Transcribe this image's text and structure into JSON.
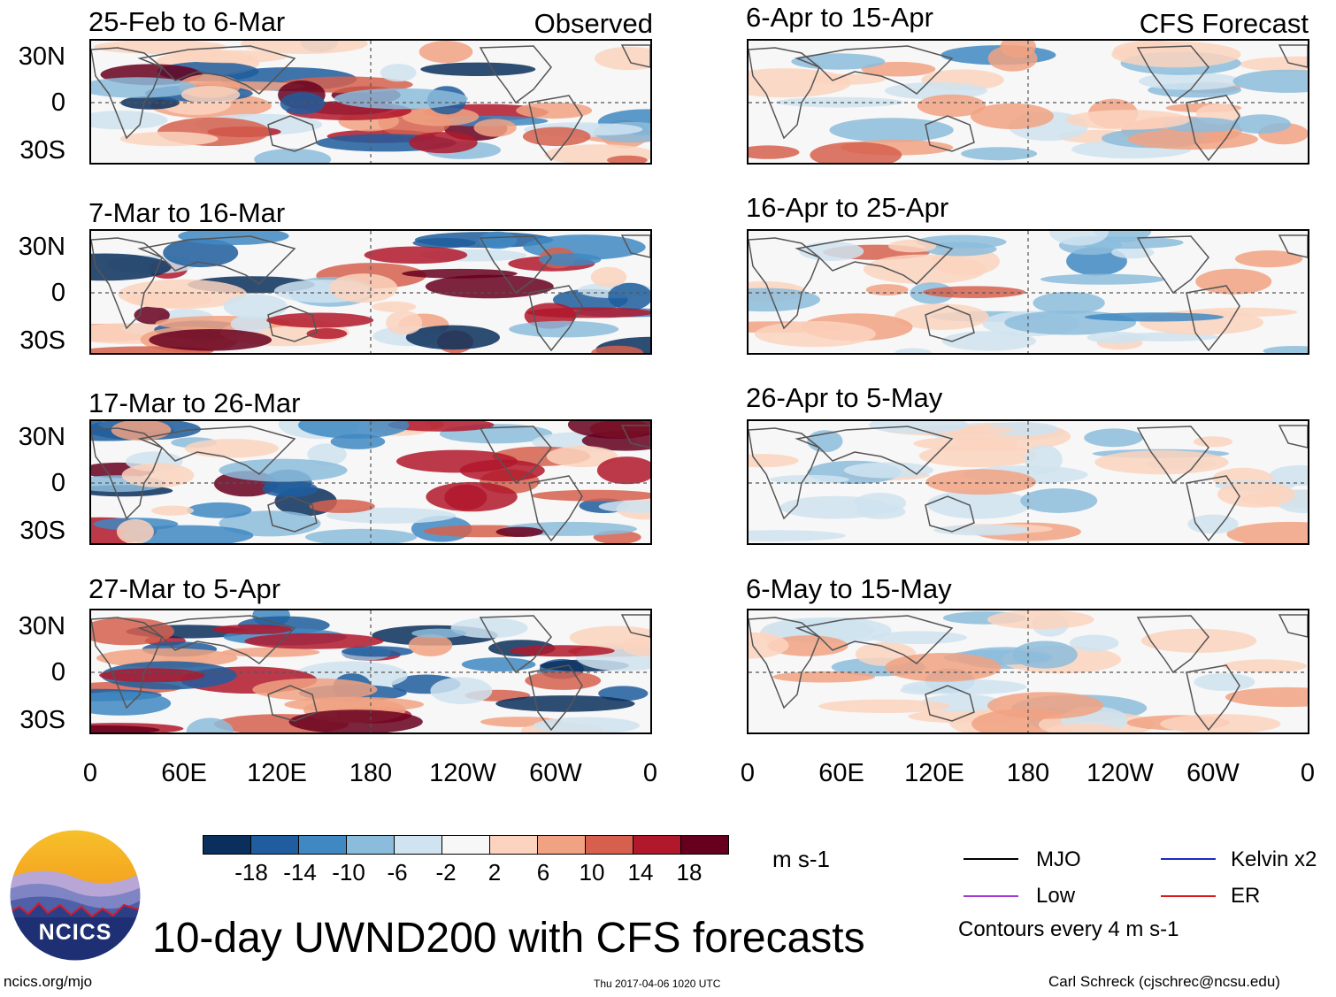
{
  "observed_label": "Observed",
  "forecast_label": "CFS Forecast",
  "panels_left": [
    {
      "title": "25-Feb to 6-Mar"
    },
    {
      "title": "7-Mar to 16-Mar"
    },
    {
      "title": "17-Mar to 26-Mar"
    },
    {
      "title": "27-Mar to 5-Apr"
    }
  ],
  "panels_right": [
    {
      "title": "6-Apr to 15-Apr"
    },
    {
      "title": "16-Apr to 25-Apr"
    },
    {
      "title": "26-Apr to 5-May"
    },
    {
      "title": "6-May to 15-May"
    }
  ],
  "lat_labels": [
    "30N",
    "0",
    "30S"
  ],
  "lon_labels": [
    "0",
    "60E",
    "120E",
    "180",
    "120W",
    "60W",
    "0"
  ],
  "colorbar": {
    "colors": [
      "#0b2f5c",
      "#1f5d9e",
      "#3f88c2",
      "#8cbcdc",
      "#cfe3f0",
      "#f7f7f7",
      "#fbd3be",
      "#f1a283",
      "#d6604d",
      "#b2182b",
      "#67001f"
    ],
    "ticks": [
      "-18",
      "-14",
      "-10",
      "-6",
      "-2",
      "2",
      "6",
      "10",
      "14",
      "18"
    ],
    "units": "m s-1"
  },
  "legend": [
    {
      "label": "MJO",
      "color": "#000000"
    },
    {
      "label": "Kelvin x2",
      "color": "#1b2cc1"
    },
    {
      "label": "Low",
      "color": "#a23bd4"
    },
    {
      "label": "ER",
      "color": "#d81a1a"
    }
  ],
  "contours_note": "Contours every 4 m s-1",
  "main_title": "10-day UWND200 with CFS forecasts",
  "logo_text": "NCICS",
  "footer": {
    "url": "ncics.org/mjo",
    "timestamp": "Thu 2017-04-06 1020 UTC",
    "author": "Carl Schreck (cjschrec@ncsu.edu)"
  }
}
